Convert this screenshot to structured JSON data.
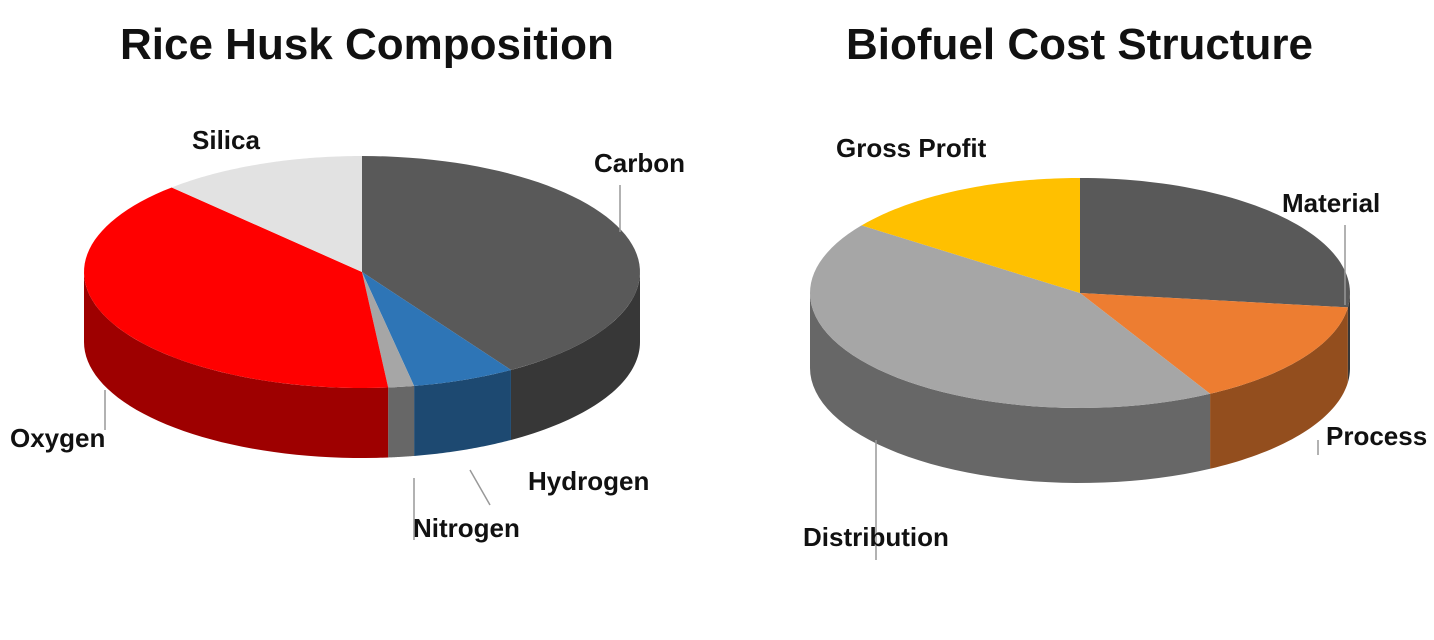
{
  "chart_data": [
    {
      "type": "pie",
      "title": "Rice Husk Composition",
      "categories": [
        "Carbon",
        "Hydrogen",
        "Nitrogen",
        "Oxygen",
        "Silica"
      ],
      "values": [
        41,
        6,
        1.5,
        39.5,
        12
      ],
      "colors": [
        "#595959",
        "#2e75b6",
        "#a6a6a6",
        "#ff0000",
        "#e2e2e2"
      ],
      "start": "12 o'clock, clockwise",
      "legend": "none (outside labels)"
    },
    {
      "type": "pie",
      "title": "Biofuel Cost Structure",
      "categories": [
        "Material",
        "Process",
        "Distribution",
        "Gross Profit"
      ],
      "values": [
        27,
        15,
        43,
        15
      ],
      "colors": [
        "#595959",
        "#ed7d31",
        "#a6a6a6",
        "#ffc000"
      ],
      "start": "12 o'clock, clockwise",
      "legend": "none (outside labels)"
    }
  ]
}
